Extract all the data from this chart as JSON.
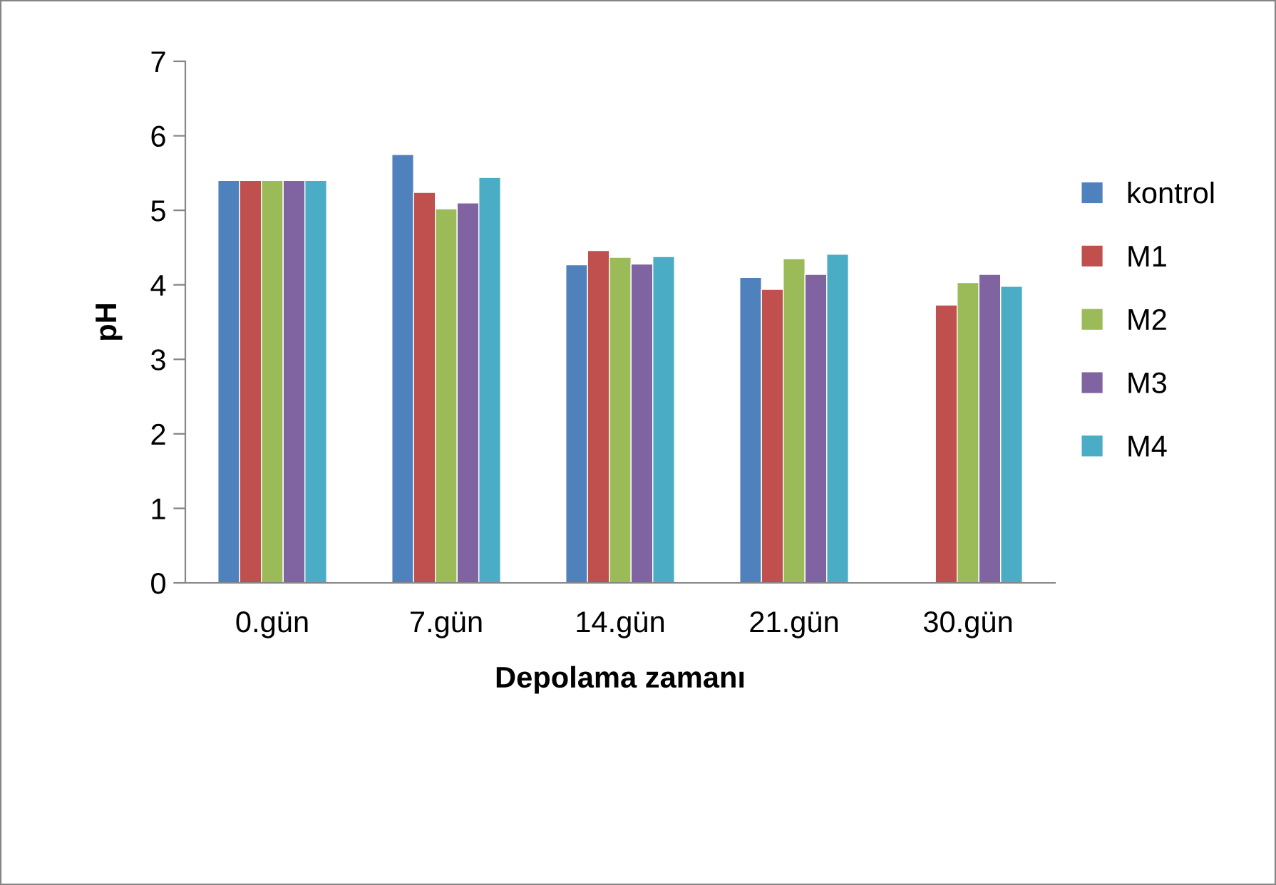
{
  "chart_data": {
    "type": "bar",
    "xlabel": "Depolama zamanı",
    "ylabel": "pH",
    "categories": [
      "0.gün",
      "7.gün",
      "14.gün",
      "21.gün",
      "30.gün"
    ],
    "series": [
      {
        "name": "kontrol",
        "color": "#4f81bd",
        "values": [
          5.4,
          5.75,
          4.27,
          4.1,
          null
        ]
      },
      {
        "name": "M1",
        "color": "#c0504d",
        "values": [
          5.4,
          5.24,
          4.46,
          3.94,
          3.73
        ]
      },
      {
        "name": "M2",
        "color": "#9bbb59",
        "values": [
          5.4,
          5.02,
          4.37,
          4.35,
          4.03
        ]
      },
      {
        "name": "M3",
        "color": "#8064a2",
        "values": [
          5.4,
          5.1,
          4.28,
          4.14,
          4.14
        ]
      },
      {
        "name": "M4",
        "color": "#4bacc6",
        "values": [
          5.4,
          5.44,
          4.38,
          4.41,
          3.98
        ]
      }
    ],
    "ylim": [
      0,
      7
    ],
    "yticks": [
      0,
      1,
      2,
      3,
      4,
      5,
      6,
      7
    ],
    "grid": false,
    "legend": "right"
  }
}
